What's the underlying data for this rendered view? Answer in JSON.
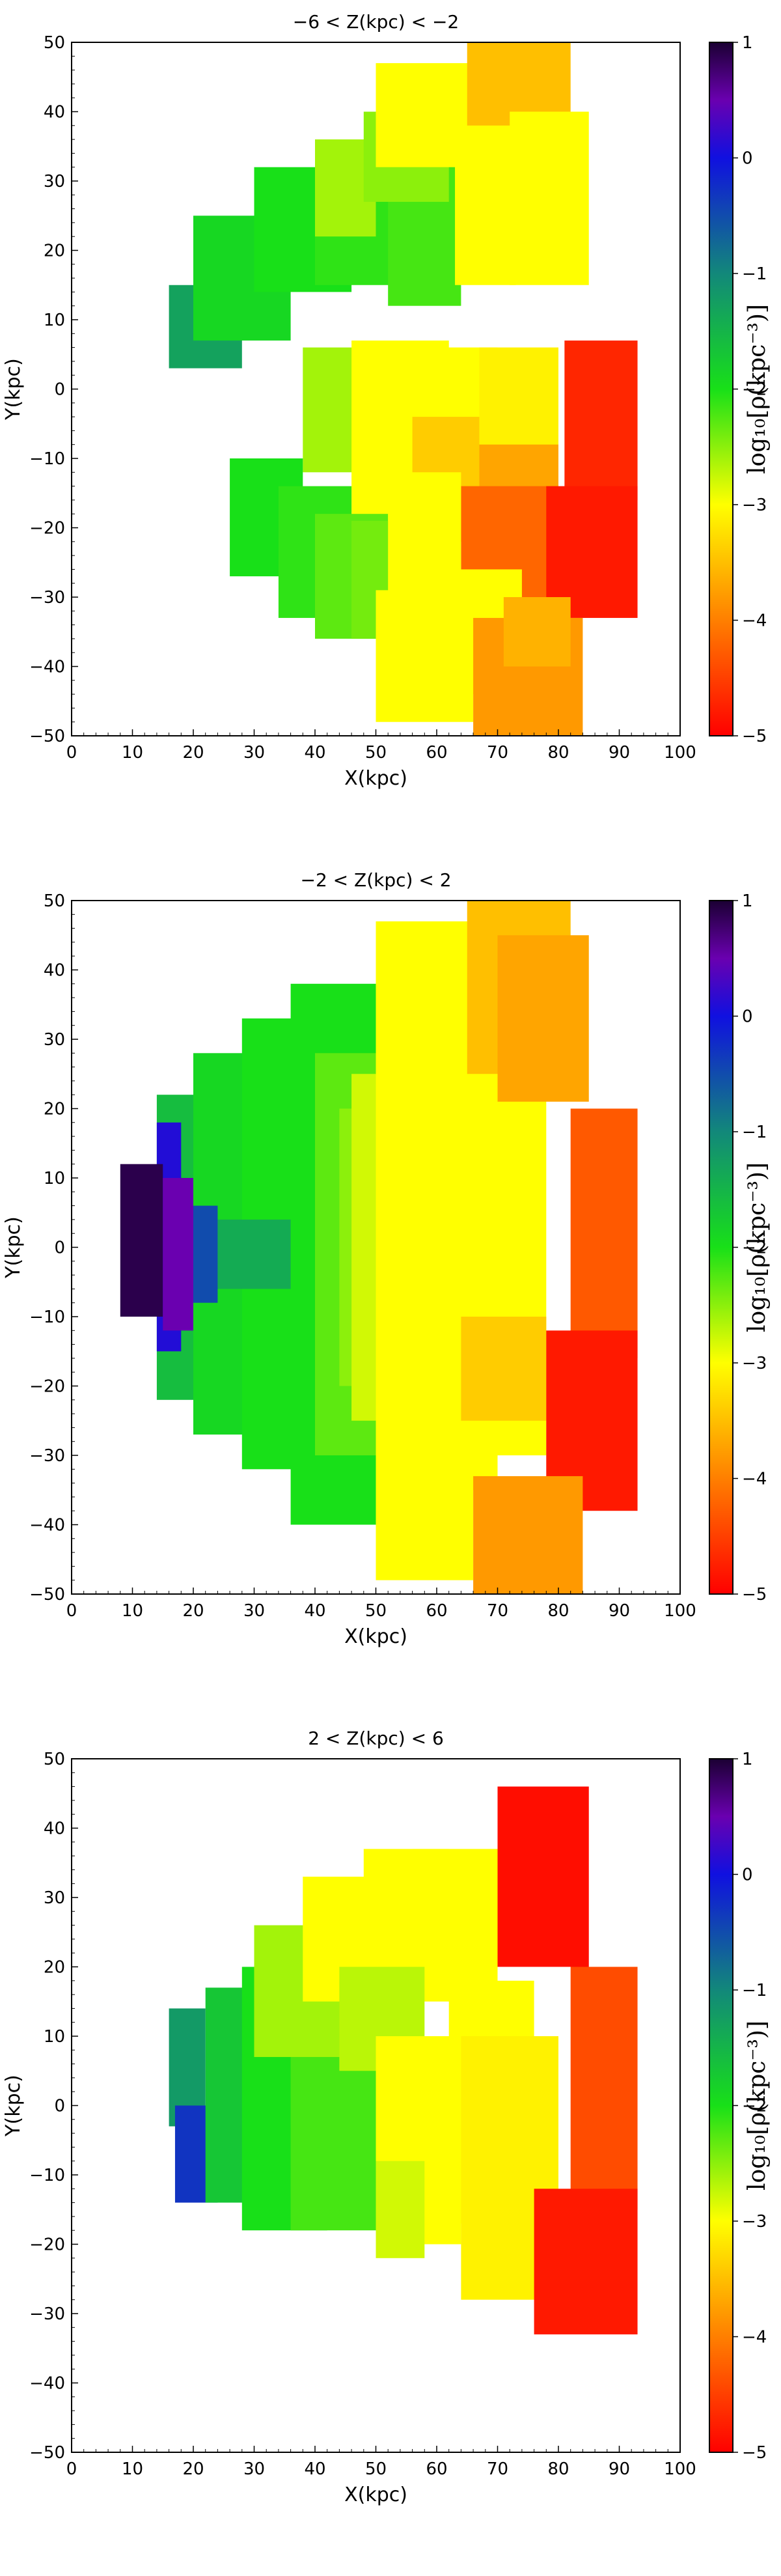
{
  "colorbar": {
    "label": "log₁₀[ρ(kpc⁻³)]",
    "range": [
      -5,
      1
    ],
    "ticks": [
      "1",
      "0",
      "−1",
      "−2",
      "−3",
      "−4",
      "−5"
    ],
    "stops": [
      {
        "v": 1,
        "c": "#1b0033"
      },
      {
        "v": 0.5,
        "c": "#6a00b0"
      },
      {
        "v": 0,
        "c": "#1010e0"
      },
      {
        "v": -1,
        "c": "#12887a"
      },
      {
        "v": -2,
        "c": "#18e018"
      },
      {
        "v": -3,
        "c": "#ffff00"
      },
      {
        "v": -4,
        "c": "#ff7f00"
      },
      {
        "v": -5,
        "c": "#ff0000"
      }
    ]
  },
  "chart_data": [
    {
      "type": "heatmap",
      "title": "−6 < Z(kpc) < −2",
      "xlabel": "X(kpc)",
      "ylabel": "Y(kpc)",
      "xlim": [
        0,
        100
      ],
      "ylim": [
        -50,
        50
      ],
      "xticks": [
        "0",
        "10",
        "20",
        "30",
        "40",
        "50",
        "60",
        "70",
        "80",
        "90",
        "100"
      ],
      "yticks": [
        "50",
        "40",
        "30",
        "20",
        "10",
        "0",
        "−10",
        "−20",
        "−30",
        "−40",
        "−50"
      ],
      "value_label": "log10 rho (kpc^-3)",
      "regions": [
        {
          "x0": 16,
          "x1": 28,
          "y0": 3,
          "y1": 15,
          "value": -1.3
        },
        {
          "x0": 20,
          "x1": 36,
          "y0": 7,
          "y1": 25,
          "value": -1.9
        },
        {
          "x0": 30,
          "x1": 46,
          "y0": 14,
          "y1": 32,
          "value": -2.0
        },
        {
          "x0": 40,
          "x1": 56,
          "y0": 15,
          "y1": 35,
          "value": -2.1
        },
        {
          "x0": 52,
          "x1": 64,
          "y0": 12,
          "y1": 33,
          "value": -2.2
        },
        {
          "x0": 40,
          "x1": 50,
          "y0": 22,
          "y1": 36,
          "value": -2.6
        },
        {
          "x0": 48,
          "x1": 62,
          "y0": 27,
          "y1": 40,
          "value": -2.5
        },
        {
          "x0": 50,
          "x1": 66,
          "y0": 32,
          "y1": 47,
          "value": -3.0
        },
        {
          "x0": 63,
          "x1": 73,
          "y0": 15,
          "y1": 40,
          "value": -3.0
        },
        {
          "x0": 65,
          "x1": 82,
          "y0": 38,
          "y1": 50,
          "value": -3.5
        },
        {
          "x0": 72,
          "x1": 85,
          "y0": 15,
          "y1": 40,
          "value": -3.0
        },
        {
          "x0": 38,
          "x1": 50,
          "y0": -12,
          "y1": 6,
          "value": -2.6
        },
        {
          "x0": 46,
          "x1": 62,
          "y0": -20,
          "y1": 7,
          "value": -3.0
        },
        {
          "x0": 54,
          "x1": 70,
          "y0": -16,
          "y1": 6,
          "value": -3.0
        },
        {
          "x0": 56,
          "x1": 70,
          "y0": -22,
          "y1": -4,
          "value": -3.4
        },
        {
          "x0": 67,
          "x1": 80,
          "y0": -16,
          "y1": 6,
          "value": -3.1
        },
        {
          "x0": 67,
          "x1": 80,
          "y0": -20,
          "y1": -8,
          "value": -3.7
        },
        {
          "x0": 64,
          "x1": 80,
          "y0": -30,
          "y1": -14,
          "value": -4.2
        },
        {
          "x0": 81,
          "x1": 93,
          "y0": -16,
          "y1": 7,
          "value": -4.7
        },
        {
          "x0": 78,
          "x1": 93,
          "y0": -33,
          "y1": -14,
          "value": -4.8
        },
        {
          "x0": 26,
          "x1": 38,
          "y0": -27,
          "y1": -10,
          "value": -2.0
        },
        {
          "x0": 34,
          "x1": 46,
          "y0": -33,
          "y1": -14,
          "value": -2.1
        },
        {
          "x0": 40,
          "x1": 52,
          "y0": -36,
          "y1": -18,
          "value": -2.3
        },
        {
          "x0": 46,
          "x1": 58,
          "y0": -36,
          "y1": -19,
          "value": -2.4
        },
        {
          "x0": 52,
          "x1": 64,
          "y0": -30,
          "y1": -12,
          "value": -3.0
        },
        {
          "x0": 50,
          "x1": 66,
          "y0": -48,
          "y1": -29,
          "value": -3.0
        },
        {
          "x0": 58,
          "x1": 74,
          "y0": -44,
          "y1": -26,
          "value": -3.0
        },
        {
          "x0": 66,
          "x1": 84,
          "y0": -50,
          "y1": -33,
          "value": -3.8
        },
        {
          "x0": 71,
          "x1": 82,
          "y0": -40,
          "y1": -30,
          "value": -3.6
        }
      ]
    },
    {
      "type": "heatmap",
      "title": "−2 < Z(kpc) < 2",
      "xlabel": "X(kpc)",
      "ylabel": "Y(kpc)",
      "xlim": [
        0,
        100
      ],
      "ylim": [
        -50,
        50
      ],
      "xticks": [
        "0",
        "10",
        "20",
        "30",
        "40",
        "50",
        "60",
        "70",
        "80",
        "90",
        "100"
      ],
      "yticks": [
        "50",
        "40",
        "30",
        "20",
        "10",
        "0",
        "−10",
        "−20",
        "−30",
        "−40",
        "−50"
      ],
      "value_label": "log10 rho (kpc^-3)",
      "regions": [
        {
          "x0": 14,
          "x1": 28,
          "y0": -22,
          "y1": 22,
          "value": -1.6
        },
        {
          "x0": 20,
          "x1": 36,
          "y0": -27,
          "y1": 28,
          "value": -1.9
        },
        {
          "x0": 28,
          "x1": 46,
          "y0": -32,
          "y1": 33,
          "value": -2.0
        },
        {
          "x0": 36,
          "x1": 54,
          "y0": -40,
          "y1": 38,
          "value": -2.0
        },
        {
          "x0": 40,
          "x1": 52,
          "y0": -30,
          "y1": 28,
          "value": -2.3
        },
        {
          "x0": 44,
          "x1": 56,
          "y0": -20,
          "y1": 20,
          "value": -2.5
        },
        {
          "x0": 46,
          "x1": 62,
          "y0": -25,
          "y1": 25,
          "value": -2.8
        },
        {
          "x0": 50,
          "x1": 66,
          "y0": -48,
          "y1": 47,
          "value": -3.0
        },
        {
          "x0": 56,
          "x1": 70,
          "y0": -35,
          "y1": 37,
          "value": -3.0
        },
        {
          "x0": 62,
          "x1": 78,
          "y0": -30,
          "y1": 30,
          "value": -3.0
        },
        {
          "x0": 64,
          "x1": 78,
          "y0": -25,
          "y1": -10,
          "value": -3.4
        },
        {
          "x0": 65,
          "x1": 82,
          "y0": 25,
          "y1": 50,
          "value": -3.5
        },
        {
          "x0": 70,
          "x1": 85,
          "y0": 21,
          "y1": 45,
          "value": -3.7
        },
        {
          "x0": 82,
          "x1": 93,
          "y0": -16,
          "y1": 20,
          "value": -4.3
        },
        {
          "x0": 78,
          "x1": 93,
          "y0": -38,
          "y1": -12,
          "value": -4.8
        },
        {
          "x0": 66,
          "x1": 84,
          "y0": -50,
          "y1": -33,
          "value": -3.8
        },
        {
          "x0": 24,
          "x1": 36,
          "y0": -6,
          "y1": 4,
          "value": -1.4
        },
        {
          "x0": 19,
          "x1": 24,
          "y0": -8,
          "y1": 6,
          "value": -0.5
        },
        {
          "x0": 14,
          "x1": 18,
          "y0": -15,
          "y1": 18,
          "value": 0.1
        },
        {
          "x0": 8,
          "x1": 15,
          "y0": -10,
          "y1": 12,
          "value": 0.9
        },
        {
          "x0": 15,
          "x1": 20,
          "y0": -12,
          "y1": 10,
          "value": 0.5
        }
      ]
    },
    {
      "type": "heatmap",
      "title": "2 < Z(kpc) < 6",
      "xlabel": "X(kpc)",
      "ylabel": "Y(kpc)",
      "xlim": [
        0,
        100
      ],
      "ylim": [
        -50,
        50
      ],
      "xticks": [
        "0",
        "10",
        "20",
        "30",
        "40",
        "50",
        "60",
        "70",
        "80",
        "90",
        "100"
      ],
      "yticks": [
        "50",
        "40",
        "30",
        "20",
        "10",
        "0",
        "−10",
        "−20",
        "−30",
        "−40",
        "−50"
      ],
      "value_label": "log10 rho (kpc^-3)",
      "regions": [
        {
          "x0": 16,
          "x1": 22,
          "y0": -3,
          "y1": 14,
          "value": -1.2
        },
        {
          "x0": 17,
          "x1": 24,
          "y0": -14,
          "y1": 0,
          "value": -0.3
        },
        {
          "x0": 22,
          "x1": 30,
          "y0": -14,
          "y1": 17,
          "value": -1.7
        },
        {
          "x0": 28,
          "x1": 42,
          "y0": -18,
          "y1": 20,
          "value": -2.0
        },
        {
          "x0": 36,
          "x1": 50,
          "y0": -18,
          "y1": 15,
          "value": -2.2
        },
        {
          "x0": 30,
          "x1": 46,
          "y0": 7,
          "y1": 26,
          "value": -2.6
        },
        {
          "x0": 38,
          "x1": 52,
          "y0": 15,
          "y1": 33,
          "value": -3.0
        },
        {
          "x0": 48,
          "x1": 62,
          "y0": 20,
          "y1": 37,
          "value": -3.0
        },
        {
          "x0": 56,
          "x1": 70,
          "y0": 15,
          "y1": 37,
          "value": -3.0
        },
        {
          "x0": 44,
          "x1": 58,
          "y0": 5,
          "y1": 20,
          "value": -2.7
        },
        {
          "x0": 50,
          "x1": 64,
          "y0": -20,
          "y1": 10,
          "value": -3.0
        },
        {
          "x0": 50,
          "x1": 58,
          "y0": -22,
          "y1": -8,
          "value": -2.8
        },
        {
          "x0": 62,
          "x1": 76,
          "y0": -17,
          "y1": 18,
          "value": -3.0
        },
        {
          "x0": 64,
          "x1": 80,
          "y0": -28,
          "y1": 10,
          "value": -3.1
        },
        {
          "x0": 70,
          "x1": 85,
          "y0": 20,
          "y1": 46,
          "value": -4.9
        },
        {
          "x0": 82,
          "x1": 93,
          "y0": -15,
          "y1": 20,
          "value": -4.4
        },
        {
          "x0": 76,
          "x1": 93,
          "y0": -33,
          "y1": -12,
          "value": -4.8
        }
      ]
    }
  ]
}
